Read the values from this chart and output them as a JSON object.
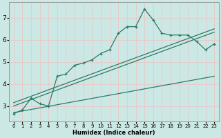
{
  "title": "",
  "xlabel": "Humidex (Indice chaleur)",
  "bg_color": "#cce8e4",
  "grid_color": "#e8c8c8",
  "line_color": "#2a7a6a",
  "xlim": [
    -0.5,
    23.5
  ],
  "ylim": [
    2.3,
    7.7
  ],
  "xticks": [
    0,
    1,
    2,
    3,
    4,
    5,
    6,
    7,
    8,
    9,
    10,
    11,
    12,
    13,
    14,
    15,
    16,
    17,
    18,
    19,
    20,
    21,
    22,
    23
  ],
  "yticks": [
    3,
    4,
    5,
    6,
    7
  ],
  "main_x": [
    0,
    1,
    2,
    3,
    4,
    5,
    6,
    7,
    8,
    9,
    10,
    11,
    12,
    13,
    14,
    15,
    16,
    17,
    18,
    19,
    20,
    21,
    22,
    23
  ],
  "main_y": [
    2.65,
    2.82,
    3.35,
    3.1,
    3.0,
    4.35,
    4.45,
    4.85,
    4.95,
    5.1,
    5.38,
    5.55,
    6.3,
    6.6,
    6.6,
    7.4,
    6.9,
    6.3,
    6.22,
    6.22,
    6.22,
    5.92,
    5.55,
    5.82
  ],
  "line1_x": [
    0,
    23
  ],
  "line1_y": [
    2.7,
    4.35
  ],
  "line2_x": [
    0,
    23
  ],
  "line2_y": [
    3.0,
    6.35
  ],
  "line3_x": [
    0,
    23
  ],
  "line3_y": [
    3.15,
    6.5
  ]
}
